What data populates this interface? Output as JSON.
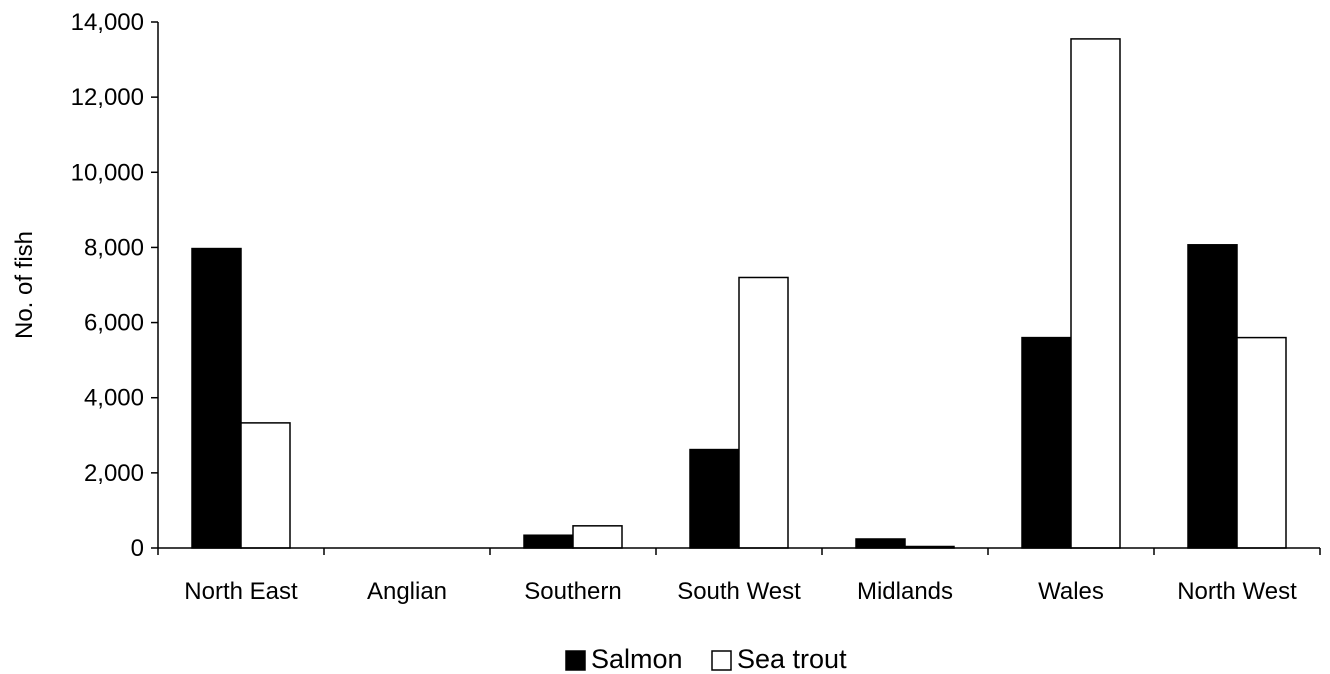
{
  "chart_data": {
    "type": "bar",
    "title": "",
    "xlabel": "",
    "ylabel": "No. of fish",
    "ylim": [
      0,
      14000
    ],
    "yticks": [
      0,
      2000,
      4000,
      6000,
      8000,
      10000,
      12000,
      14000
    ],
    "ytick_labels": [
      "0",
      "2,000",
      "4,000",
      "6,000",
      "8,000",
      "10,000",
      "12,000",
      "14,000"
    ],
    "categories": [
      "North East",
      "Anglian",
      "Southern",
      "South West",
      "Midlands",
      "Wales",
      "North West"
    ],
    "series": [
      {
        "name": "Salmon",
        "color": "#000000",
        "values": [
          7970,
          0,
          340,
          2620,
          240,
          5600,
          8070
        ]
      },
      {
        "name": "Sea trout",
        "color": "#ffffff",
        "values": [
          3330,
          0,
          590,
          7200,
          40,
          13550,
          5600
        ]
      }
    ],
    "legend": {
      "position": "bottom"
    },
    "grid": false
  }
}
